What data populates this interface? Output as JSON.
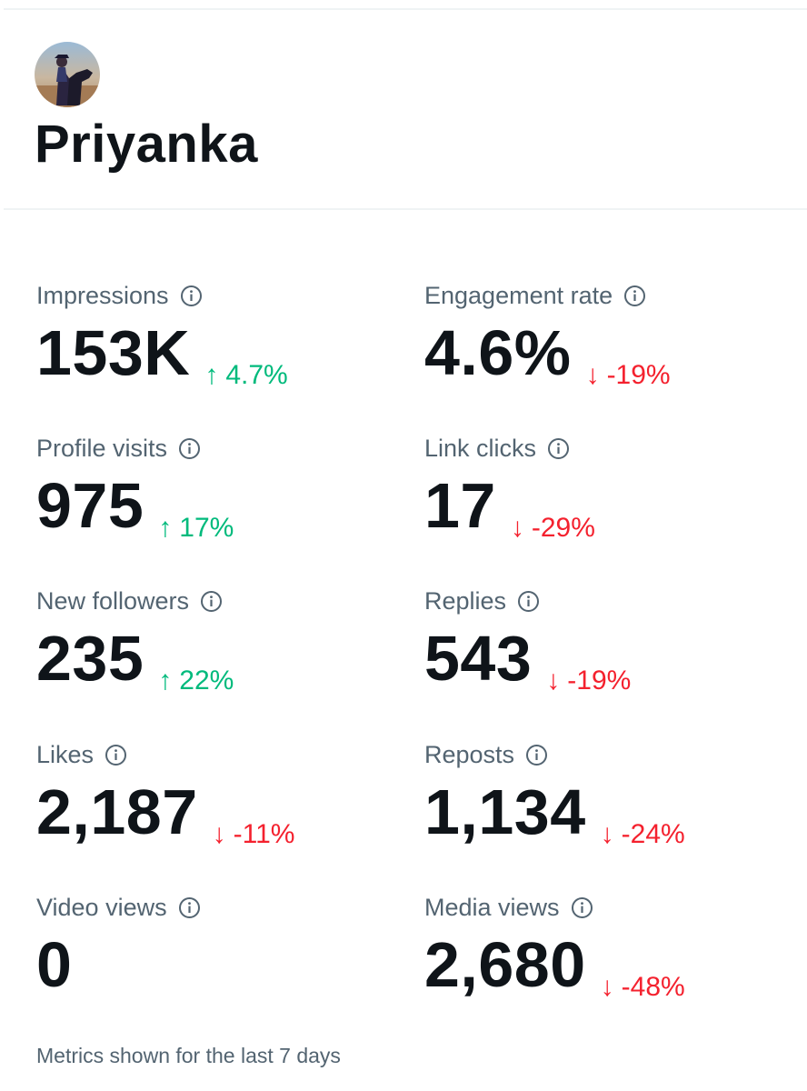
{
  "profile": {
    "name": "Priyanka"
  },
  "metrics": [
    {
      "label": "Impressions",
      "value": "153K",
      "change": "4.7%",
      "direction": "up"
    },
    {
      "label": "Engagement rate",
      "value": "4.6%",
      "change": "-19%",
      "direction": "down"
    },
    {
      "label": "Profile visits",
      "value": "975",
      "change": "17%",
      "direction": "up"
    },
    {
      "label": "Link clicks",
      "value": "17",
      "change": "-29%",
      "direction": "down"
    },
    {
      "label": "New followers",
      "value": "235",
      "change": "22%",
      "direction": "up"
    },
    {
      "label": "Replies",
      "value": "543",
      "change": "-19%",
      "direction": "down"
    },
    {
      "label": "Likes",
      "value": "2,187",
      "change": "-11%",
      "direction": "down"
    },
    {
      "label": "Reposts",
      "value": "1,134",
      "change": "-24%",
      "direction": "down"
    },
    {
      "label": "Video views",
      "value": "0",
      "change": "",
      "direction": "none"
    },
    {
      "label": "Media views",
      "value": "2,680",
      "change": "-48%",
      "direction": "down"
    }
  ],
  "arrows": {
    "up": "↑",
    "down": "↓"
  },
  "colors": {
    "up": "#00ba7c",
    "down": "#f4212e",
    "label": "#536471",
    "value": "#0f1419"
  },
  "icons": {
    "info": "info-circle-icon",
    "up": "arrow-up-icon",
    "down": "arrow-down-icon"
  },
  "footer": {
    "note": "Metrics shown for the last 7 days"
  }
}
